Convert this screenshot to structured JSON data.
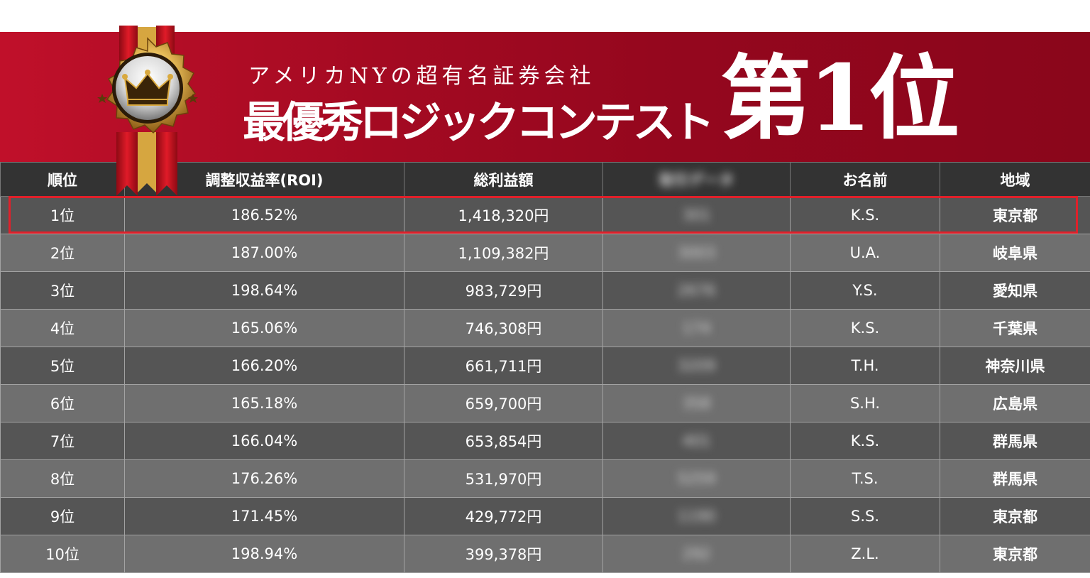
{
  "banner": {
    "subtitle": "アメリカNYの超有名証券会社",
    "title": "最優秀ロジックコンテスト",
    "rank": "第1位"
  },
  "colors": {
    "banner_red": "#a40a22",
    "header_bg": "#333333",
    "row_dark": "#555555",
    "row_light": "#6f6f6f",
    "highlight": "#e0202a",
    "medal_gold": "#d9a93f",
    "ribbon_red": "#c4141f"
  },
  "icons": [
    "medal-icon",
    "crown-icon",
    "star-icon"
  ],
  "table": {
    "headers": {
      "rank": "順位",
      "roi": "調整収益率(ROI)",
      "profit": "総利益額",
      "hidden": "取引データ",
      "name": "お名前",
      "region": "地域"
    },
    "rows": [
      {
        "rank": "1位",
        "roi": "186.52%",
        "profit": "1,418,320円",
        "hidden": "301",
        "name": "K.S.",
        "region": "東京都"
      },
      {
        "rank": "2位",
        "roi": "187.00%",
        "profit": "1,109,382円",
        "hidden": "3003",
        "name": "U.A.",
        "region": "岐阜県"
      },
      {
        "rank": "3位",
        "roi": "198.64%",
        "profit": "983,729円",
        "hidden": "2676",
        "name": "Y.S.",
        "region": "愛知県"
      },
      {
        "rank": "4位",
        "roi": "165.06%",
        "profit": "746,308円",
        "hidden": "174",
        "name": "K.S.",
        "region": "千葉県"
      },
      {
        "rank": "5位",
        "roi": "166.20%",
        "profit": "661,711円",
        "hidden": "3209",
        "name": "T.H.",
        "region": "神奈川県"
      },
      {
        "rank": "6位",
        "roi": "165.18%",
        "profit": "659,700円",
        "hidden": "358",
        "name": "S.H.",
        "region": "広島県"
      },
      {
        "rank": "7位",
        "roi": "166.04%",
        "profit": "653,854円",
        "hidden": "401",
        "name": "K.S.",
        "region": "群馬県"
      },
      {
        "rank": "8位",
        "roi": "176.26%",
        "profit": "531,970円",
        "hidden": "5259",
        "name": "T.S.",
        "region": "群馬県"
      },
      {
        "rank": "9位",
        "roi": "171.45%",
        "profit": "429,772円",
        "hidden": "1190",
        "name": "S.S.",
        "region": "東京都"
      },
      {
        "rank": "10位",
        "roi": "198.94%",
        "profit": "399,378円",
        "hidden": "292",
        "name": "Z.L.",
        "region": "東京都"
      }
    ]
  }
}
